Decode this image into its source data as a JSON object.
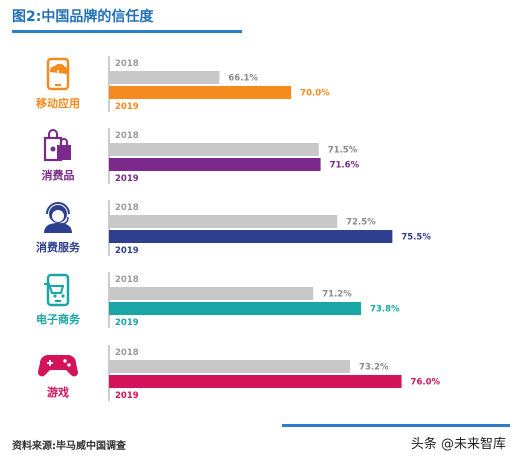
{
  "chart_data": {
    "type": "bar",
    "title": "图2:中国品牌的信任度",
    "categories": [
      "移动应用",
      "消费品",
      "消费服务",
      "电子商务",
      "游戏"
    ],
    "series": [
      {
        "name": "2018",
        "values": [
          66.1,
          71.5,
          72.5,
          71.2,
          73.2
        ],
        "labels": [
          "66.1%",
          "71.5%",
          "72.5%",
          "71.2%",
          "73.2%"
        ]
      },
      {
        "name": "2019",
        "values": [
          70.0,
          71.6,
          75.5,
          73.8,
          76.0
        ],
        "labels": [
          "70.0%",
          "71.6%",
          "75.5%",
          "73.8%",
          "76.0%"
        ]
      }
    ],
    "colors_2019": [
      "#f58a1f",
      "#7b2a8c",
      "#2e3f8f",
      "#1aa6a5",
      "#d3145a"
    ],
    "color_2018": "#c8c8c8",
    "icons": [
      "phone-cloud-icon",
      "shopping-bags-icon",
      "customer-service-icon",
      "phone-cart-icon",
      "gamepad-icon"
    ],
    "xlim": [
      0,
      100
    ]
  },
  "footer": {
    "source": "资料来源:毕马威中国调查",
    "watermark": "头条 @未来智库"
  }
}
